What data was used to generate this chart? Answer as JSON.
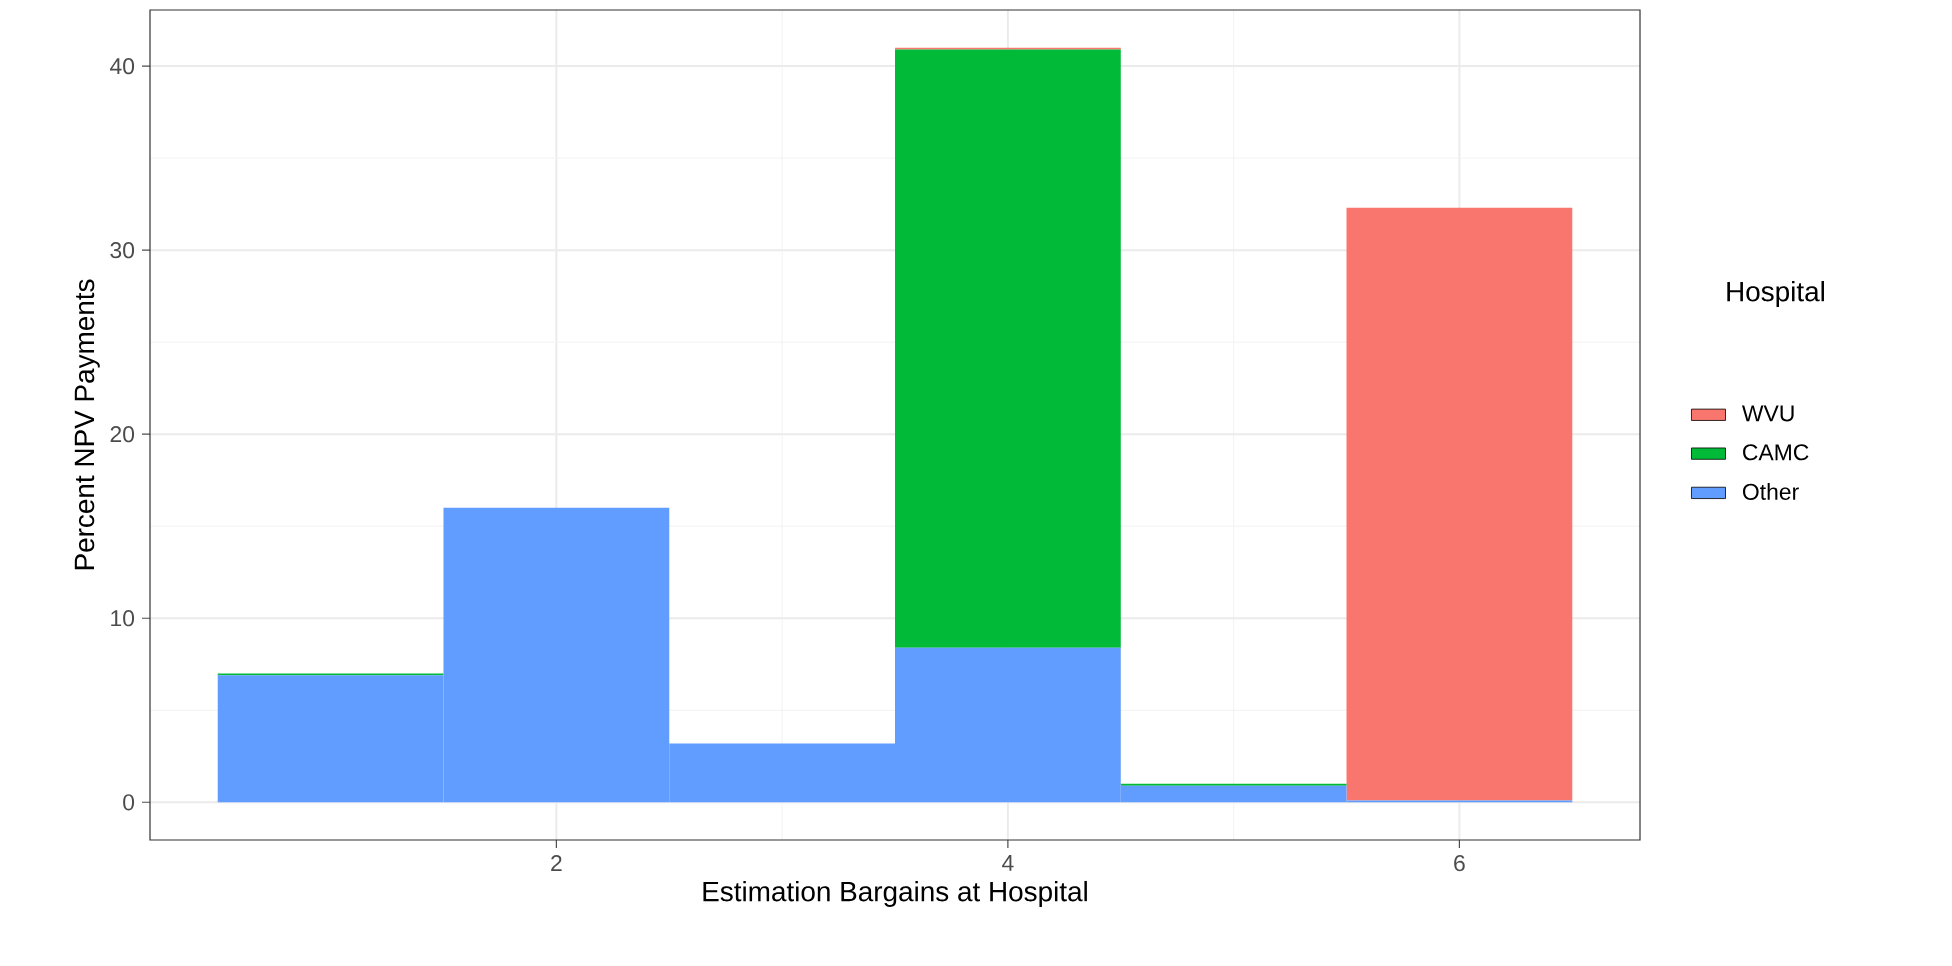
{
  "chart_data": {
    "type": "bar",
    "stacked": true,
    "xlabel": "Estimation Bargains at Hospital",
    "ylabel": "Percent NPV Payments",
    "x": [
      1,
      2,
      3,
      4,
      5,
      6
    ],
    "series": [
      {
        "name": "Other",
        "color": "#619cff",
        "values": [
          6.9,
          16.0,
          3.2,
          8.4,
          0.9,
          0.1
        ]
      },
      {
        "name": "CAMC",
        "color": "#00ba38",
        "values": [
          0.1,
          0,
          0,
          32.5,
          0.1,
          0
        ]
      },
      {
        "name": "WVU",
        "color": "#f8766d",
        "values": [
          0,
          0,
          0,
          0.1,
          0,
          32.2
        ]
      }
    ],
    "xlim": [
      0.2,
      6.8
    ],
    "ylim": [
      -2.05,
      43.05
    ],
    "xticks": [
      2,
      4,
      6
    ],
    "yticks": [
      0,
      10,
      20,
      30,
      40
    ],
    "grid": true,
    "legend": "right",
    "legend_title": "Hospital"
  }
}
